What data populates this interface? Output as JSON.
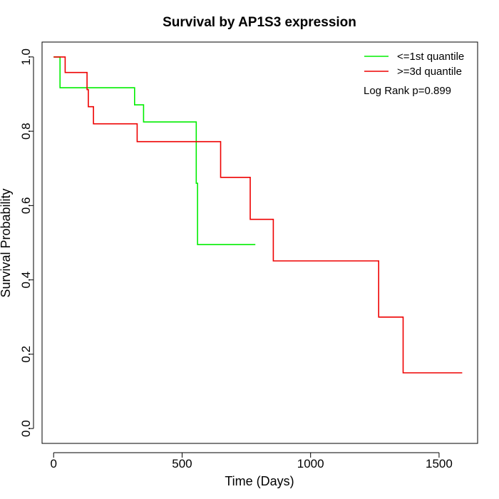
{
  "chart_data": {
    "type": "line",
    "step": true,
    "title": "Survival by AP1S3 expression",
    "xlabel": "Time (Days)",
    "ylabel": "Survival Probability",
    "xlim": [
      -45,
      1650
    ],
    "ylim": [
      -0.04,
      1.04
    ],
    "xticks": [
      0,
      500,
      1000,
      1500
    ],
    "xtick_labels": [
      "0",
      "500",
      "1000",
      "1500"
    ],
    "yticks": [
      0.0,
      0.2,
      0.4,
      0.6,
      0.8,
      1.0
    ],
    "ytick_labels": [
      "0.0",
      "0.2",
      "0.4",
      "0.6",
      "0.8",
      "1.0"
    ],
    "grid": false,
    "legend_position": "top-right",
    "annotation": "Log Rank p=0.899",
    "series": [
      {
        "name": "<=1st quantile",
        "color": "#00ee00",
        "x": [
          0,
          25,
          25,
          315,
          315,
          350,
          350,
          555,
          555,
          560,
          560,
          785
        ],
        "y": [
          1.0,
          1.0,
          0.917,
          0.917,
          0.871,
          0.871,
          0.825,
          0.825,
          0.66,
          0.66,
          0.495,
          0.495
        ]
      },
      {
        "name": ">=3d quantile",
        "color": "#ee0000",
        "x": [
          0,
          45,
          45,
          130,
          130,
          135,
          135,
          155,
          155,
          325,
          325,
          650,
          650,
          765,
          765,
          855,
          855,
          1265,
          1265,
          1360,
          1360,
          1590
        ],
        "y": [
          1.0,
          1.0,
          0.958,
          0.958,
          0.912,
          0.912,
          0.866,
          0.866,
          0.82,
          0.82,
          0.772,
          0.772,
          0.676,
          0.676,
          0.563,
          0.563,
          0.451,
          0.451,
          0.3,
          0.3,
          0.15,
          0.15
        ]
      }
    ]
  }
}
